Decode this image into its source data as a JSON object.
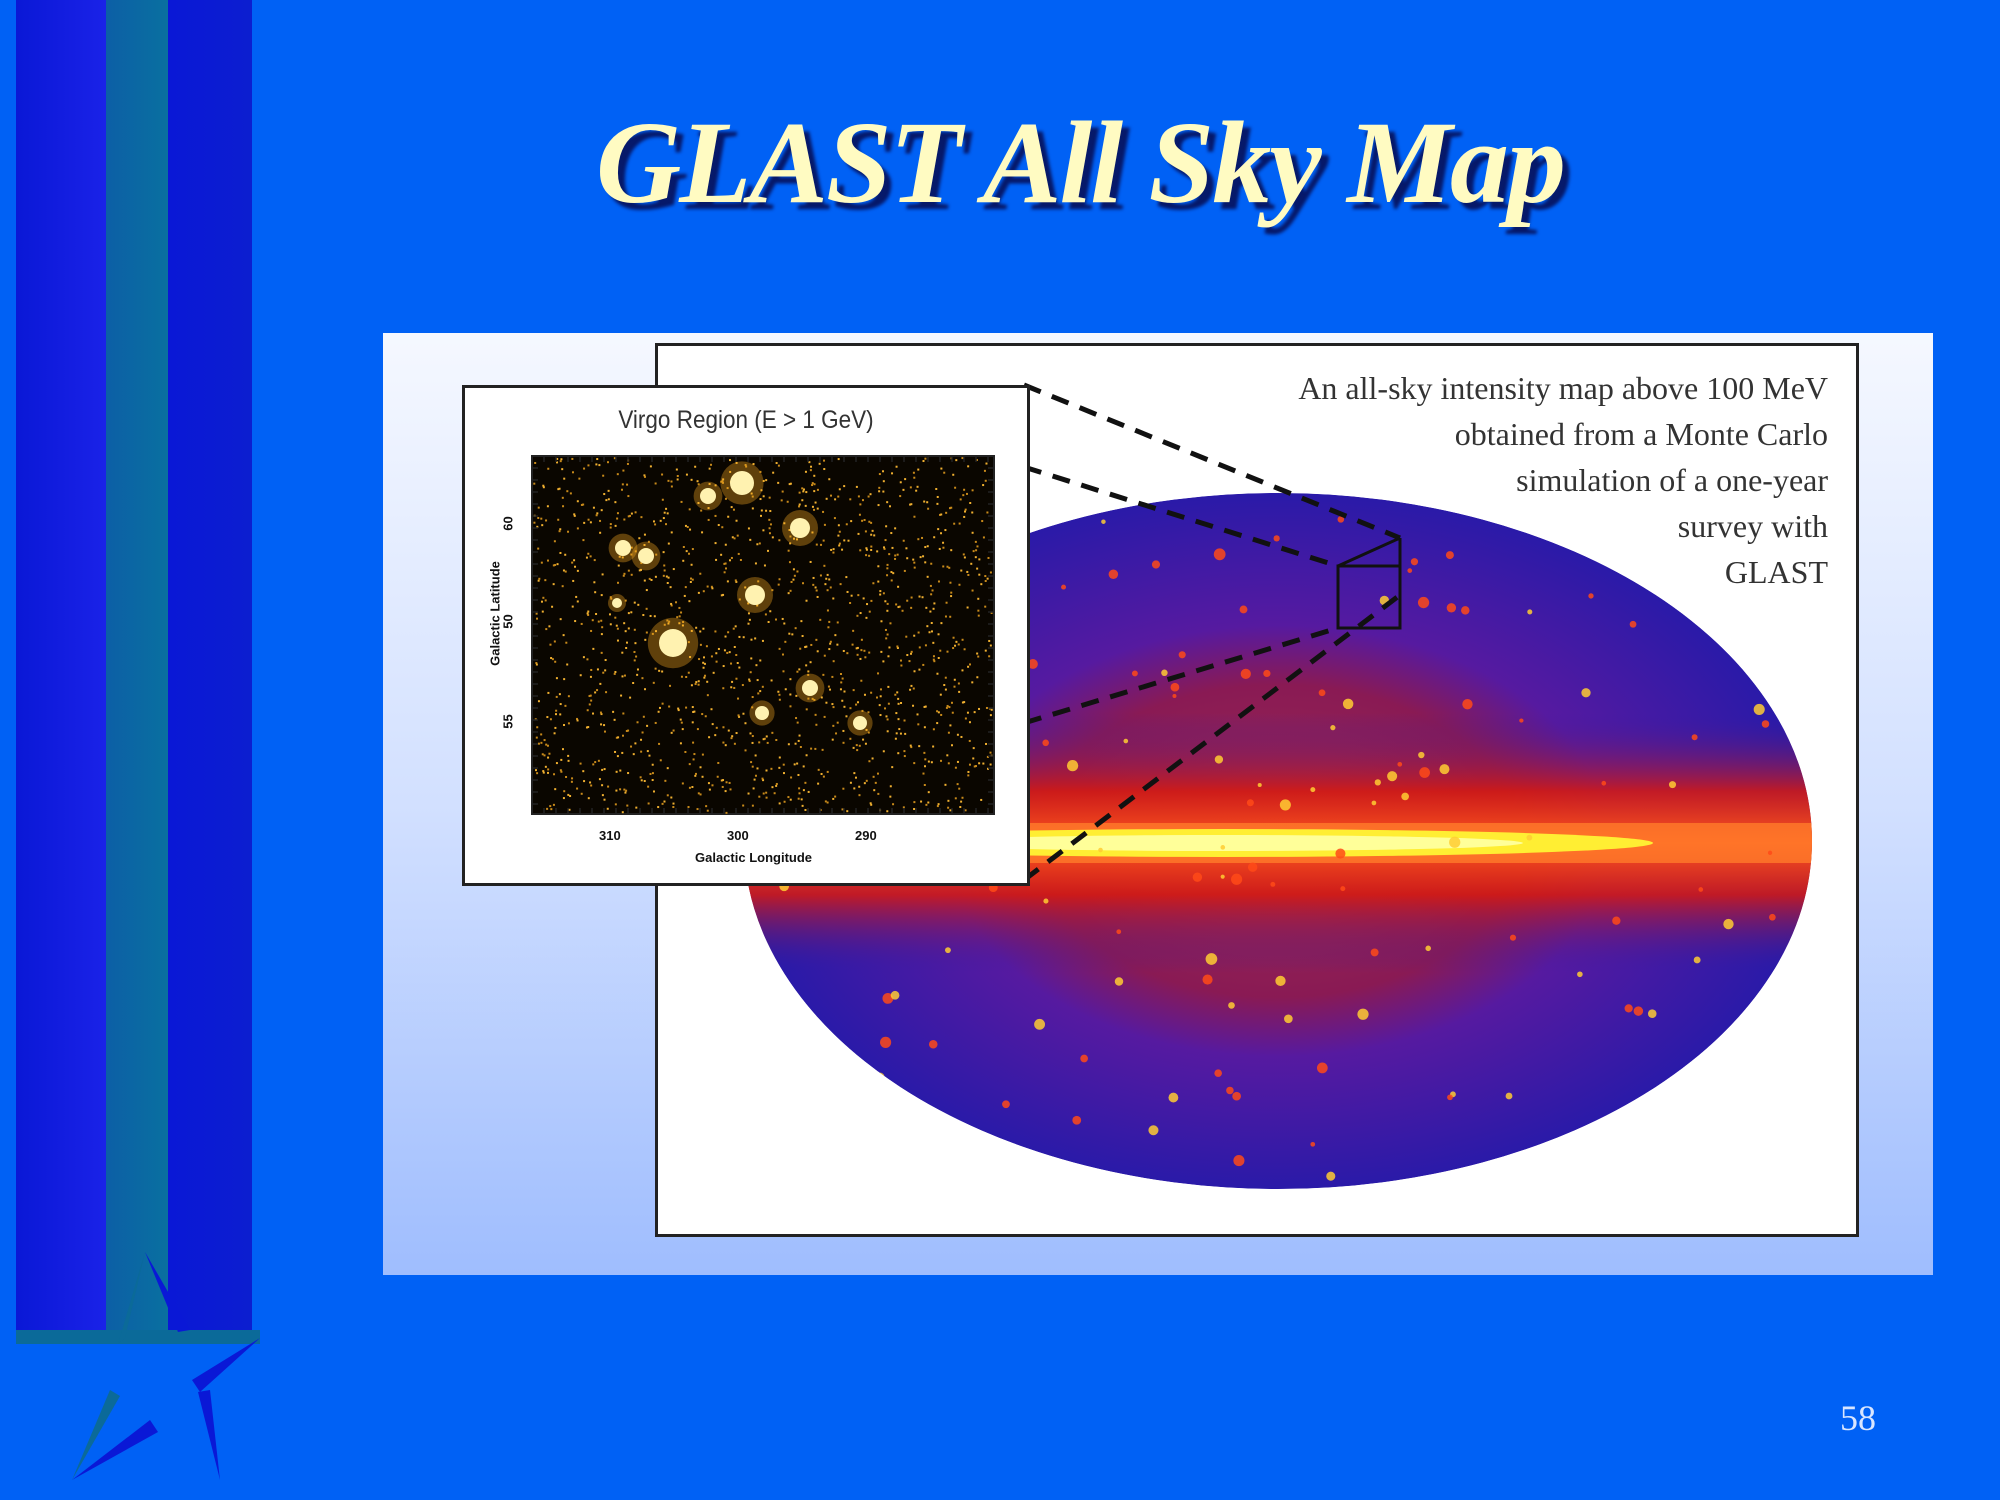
{
  "slide": {
    "title": "GLAST All Sky Map",
    "page_number": "58",
    "colors": {
      "background": "#0061f5",
      "title": "#fffbc2",
      "title_shadow": "#06196a",
      "stripe_dark_blue": "#0a18d6",
      "stripe_teal": "#0b6a99"
    }
  },
  "decoration": {
    "icons": [
      "vertical-stripes",
      "star-outline-icon"
    ]
  },
  "figure": {
    "caption_lines": [
      "An all-sky intensity map above 100 MeV",
      "obtained from a Monte Carlo",
      "simulation of a one-year",
      "survey with",
      "GLAST"
    ],
    "map_colors": [
      "#2a1aa8",
      "#d71a10",
      "#ff5a20",
      "#ffee33"
    ],
    "inset": {
      "title": "Virgo Region (E > 1 GeV)",
      "x_label": "Galactic Longitude",
      "y_label": "Galactic Latitude",
      "x_ticks": [
        "310",
        "300",
        "290"
      ],
      "y_ticks": [
        "60",
        "50",
        "55"
      ]
    }
  }
}
